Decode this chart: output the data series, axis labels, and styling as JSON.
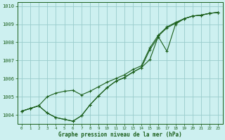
{
  "title": "Graphe pression niveau de la mer (hPa)",
  "background_color": "#cdf0f0",
  "grid_color": "#99cccc",
  "line_color": "#1a5e1a",
  "hours": [
    0,
    1,
    2,
    3,
    4,
    5,
    6,
    7,
    8,
    9,
    10,
    11,
    12,
    13,
    14,
    15,
    16,
    17,
    18,
    19,
    20,
    21,
    22,
    23
  ],
  "line1": [
    1004.2,
    1004.35,
    1004.5,
    1004.1,
    1003.85,
    1003.75,
    1003.65,
    1003.95,
    1004.55,
    1005.05,
    1005.5,
    1005.85,
    1006.05,
    1006.35,
    1006.6,
    1007.6,
    1008.3,
    1007.5,
    1009.0,
    1009.3,
    1009.45,
    1009.5,
    1009.6,
    1009.65
  ],
  "line2": [
    1004.2,
    1004.35,
    1004.5,
    1005.0,
    1005.2,
    1005.3,
    1005.35,
    1005.1,
    1005.3,
    1005.55,
    1005.8,
    1006.0,
    1006.2,
    1006.5,
    1006.7,
    1007.7,
    1008.4,
    1008.85,
    1009.1,
    1009.3,
    1009.45,
    1009.5,
    1009.6,
    1009.65
  ],
  "line3": [
    1004.2,
    1004.35,
    1004.5,
    1004.1,
    1003.85,
    1003.75,
    1003.65,
    1003.95,
    1004.55,
    1005.05,
    1005.5,
    1005.85,
    1006.05,
    1006.35,
    1006.6,
    1007.05,
    1008.35,
    1008.8,
    1009.05,
    1009.3,
    1009.45,
    1009.5,
    1009.6,
    1009.65
  ],
  "ylim_min": 1003.5,
  "ylim_max": 1010.2,
  "ytick_min": 1004,
  "ytick_max": 1010,
  "ytick_step": 1,
  "x_labels": [
    "0",
    "1",
    "2",
    "3",
    "4",
    "5",
    "6",
    "7",
    "8",
    "9",
    "10",
    "11",
    "12",
    "13",
    "14",
    "15",
    "16",
    "17",
    "18",
    "19",
    "20",
    "21",
    "22",
    "23"
  ]
}
